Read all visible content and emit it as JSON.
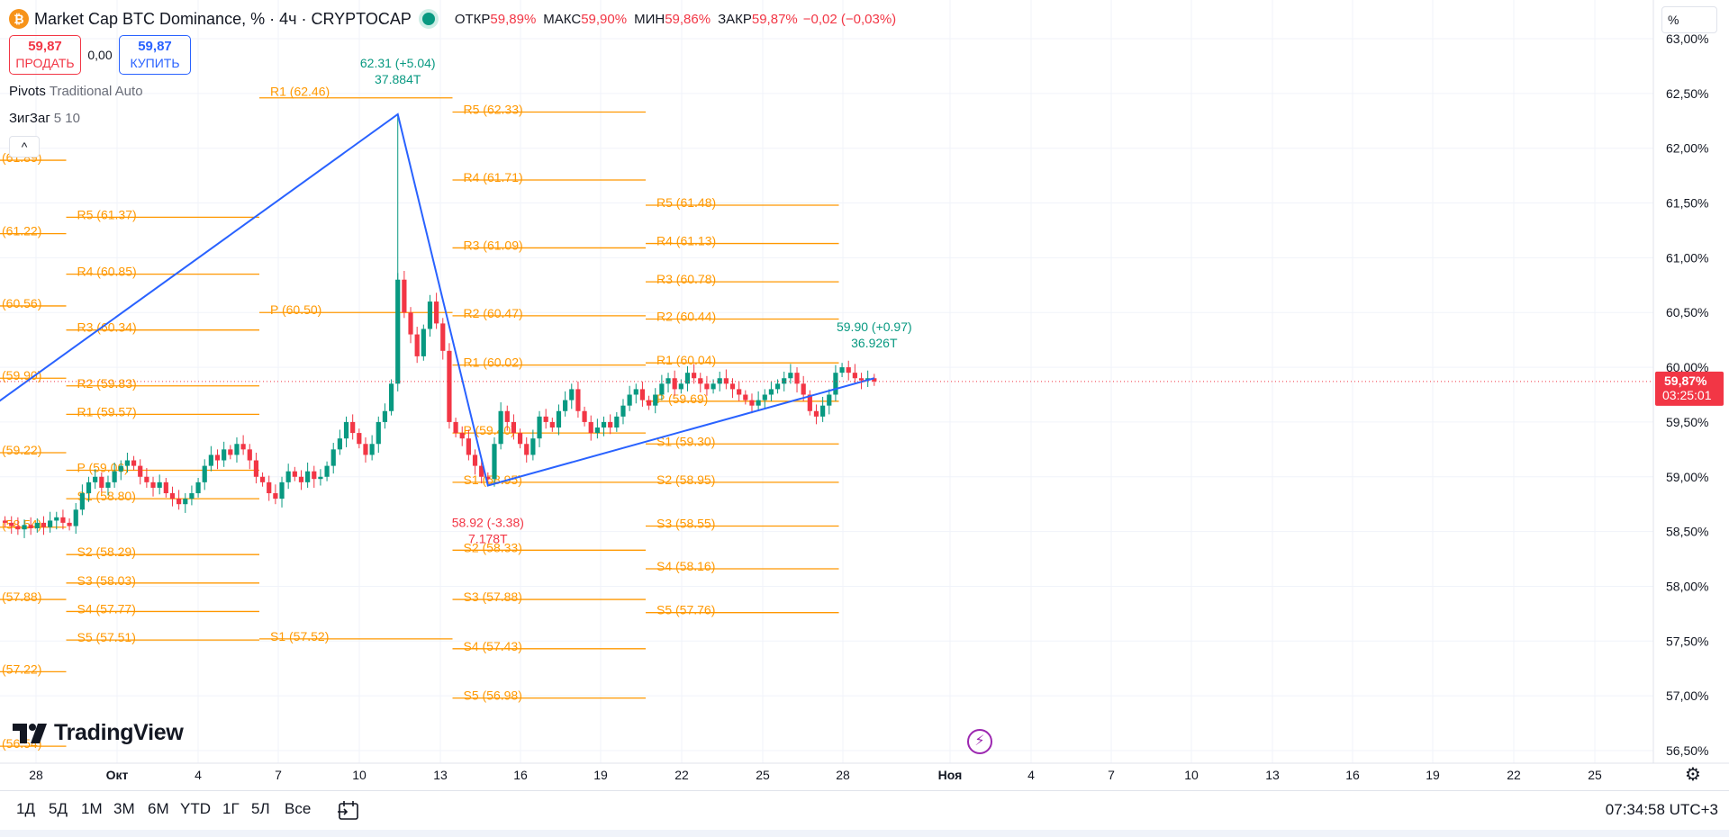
{
  "header": {
    "symbol": "Market Cap BTC Dominance, % · 4ч · CRYPTOCAP",
    "ohlc": [
      {
        "label": "ОТКР",
        "value": "59,89%"
      },
      {
        "label": "МАКС",
        "value": "59,90%"
      },
      {
        "label": "МИН",
        "value": "59,86%"
      },
      {
        "label": "ЗАКР",
        "value": "59,87%"
      }
    ],
    "change": "−0,02 (−0,03%)",
    "coin_symbol": "₿"
  },
  "trade": {
    "sell_price": "59,87",
    "sell_label": "ПРОДАТЬ",
    "spread": "0,00",
    "buy_price": "59,87",
    "buy_label": "КУПИТЬ"
  },
  "indicators": [
    {
      "name": "Pivots",
      "args": "Traditional Auto"
    },
    {
      "name": "ЗигЗаг",
      "args": "5 10"
    }
  ],
  "collapse_glyph": "^",
  "unit_selector": "%",
  "colors": {
    "up": "#089981",
    "down": "#f23645",
    "pivot": "#ff9800",
    "zigzag": "#2962ff",
    "accent": "#2962ff"
  },
  "chart_data": {
    "type": "candlestick",
    "timeframe": "4ч",
    "ylim": [
      56.5,
      63.0
    ],
    "y_ticks": [
      "56,50%",
      "57,00%",
      "57,50%",
      "58,00%",
      "58,50%",
      "59,00%",
      "59,50%",
      "60,00%",
      "60,50%",
      "61,00%",
      "61,50%",
      "62,00%",
      "62,50%",
      "63,00%"
    ],
    "x_ticks": [
      "28",
      "Окт",
      "4",
      "7",
      "10",
      "13",
      "16",
      "19",
      "22",
      "25",
      "28",
      "Ноя",
      "4",
      "7",
      "10",
      "13",
      "16",
      "19",
      "22",
      "25"
    ],
    "last_price": {
      "value": 59.87,
      "label": "59,87%",
      "countdown": "03:25:01"
    },
    "candles": [
      [
        58.6,
        58.58
      ],
      [
        58.58,
        58.55
      ],
      [
        58.55,
        58.52
      ],
      [
        58.52,
        58.56
      ],
      [
        58.56,
        58.53
      ],
      [
        58.53,
        58.58
      ],
      [
        58.58,
        58.54
      ],
      [
        58.54,
        58.6
      ],
      [
        58.6,
        58.63
      ],
      [
        58.63,
        58.58
      ],
      [
        58.58,
        58.55
      ],
      [
        58.55,
        58.7
      ],
      [
        58.7,
        58.85
      ],
      [
        58.85,
        58.95
      ],
      [
        58.95,
        59.0
      ],
      [
        59.0,
        58.9
      ],
      [
        58.9,
        58.95
      ],
      [
        58.95,
        59.05
      ],
      [
        59.05,
        59.1
      ],
      [
        59.1,
        59.15
      ],
      [
        59.15,
        59.1
      ],
      [
        59.1,
        59.0
      ],
      [
        59.0,
        58.95
      ],
      [
        58.95,
        58.9
      ],
      [
        58.9,
        58.95
      ],
      [
        58.95,
        58.85
      ],
      [
        58.85,
        58.8
      ],
      [
        58.8,
        58.75
      ],
      [
        58.75,
        58.8
      ],
      [
        58.8,
        58.85
      ],
      [
        58.85,
        58.95
      ],
      [
        58.95,
        59.1
      ],
      [
        59.1,
        59.2
      ],
      [
        59.2,
        59.15
      ],
      [
        59.15,
        59.25
      ],
      [
        59.25,
        59.2
      ],
      [
        59.2,
        59.3
      ],
      [
        59.3,
        59.25
      ],
      [
        59.25,
        59.15
      ],
      [
        59.15,
        59.0
      ],
      [
        59.0,
        58.95
      ],
      [
        58.95,
        58.85
      ],
      [
        58.85,
        58.8
      ],
      [
        58.8,
        58.95
      ],
      [
        58.95,
        59.05
      ],
      [
        59.05,
        59.0
      ],
      [
        59.0,
        58.95
      ],
      [
        58.95,
        59.05
      ],
      [
        59.05,
        58.98
      ],
      [
        58.98,
        59.0
      ],
      [
        59.0,
        59.1
      ],
      [
        59.1,
        59.25
      ],
      [
        59.25,
        59.35
      ],
      [
        59.35,
        59.5
      ],
      [
        59.5,
        59.4
      ],
      [
        59.4,
        59.3
      ],
      [
        59.3,
        59.2
      ],
      [
        59.2,
        59.3
      ],
      [
        59.3,
        59.5
      ],
      [
        59.5,
        59.6
      ],
      [
        59.6,
        59.85
      ],
      [
        59.85,
        60.8
      ],
      [
        60.8,
        60.5
      ],
      [
        60.5,
        60.3
      ],
      [
        60.3,
        60.1
      ],
      [
        60.1,
        60.35
      ],
      [
        60.35,
        60.6
      ],
      [
        60.6,
        60.4
      ],
      [
        60.4,
        60.15
      ],
      [
        60.15,
        59.5
      ],
      [
        59.5,
        59.4
      ],
      [
        59.4,
        59.35
      ],
      [
        59.35,
        59.2
      ],
      [
        59.2,
        59.1
      ],
      [
        59.1,
        59.0
      ],
      [
        59.0,
        58.98
      ],
      [
        58.98,
        59.3
      ],
      [
        59.3,
        59.6
      ],
      [
        59.6,
        59.5
      ],
      [
        59.5,
        59.4
      ],
      [
        59.4,
        59.3
      ],
      [
        59.3,
        59.2
      ],
      [
        59.2,
        59.35
      ],
      [
        59.35,
        59.55
      ],
      [
        59.55,
        59.5
      ],
      [
        59.5,
        59.45
      ],
      [
        59.45,
        59.6
      ],
      [
        59.6,
        59.7
      ],
      [
        59.7,
        59.8
      ],
      [
        59.8,
        59.6
      ],
      [
        59.6,
        59.5
      ],
      [
        59.5,
        59.4
      ],
      [
        59.4,
        59.45
      ],
      [
        59.45,
        59.5
      ],
      [
        59.5,
        59.45
      ],
      [
        59.45,
        59.55
      ],
      [
        59.55,
        59.65
      ],
      [
        59.65,
        59.75
      ],
      [
        59.75,
        59.8
      ],
      [
        59.8,
        59.7
      ],
      [
        59.7,
        59.65
      ],
      [
        59.65,
        59.75
      ],
      [
        59.75,
        59.85
      ],
      [
        59.85,
        59.9
      ],
      [
        59.9,
        59.8
      ],
      [
        59.8,
        59.85
      ],
      [
        59.85,
        59.95
      ],
      [
        59.95,
        59.9
      ],
      [
        59.9,
        59.85
      ],
      [
        59.85,
        59.8
      ],
      [
        59.8,
        59.85
      ],
      [
        59.85,
        59.9
      ],
      [
        59.9,
        59.85
      ],
      [
        59.85,
        59.8
      ],
      [
        59.8,
        59.75
      ],
      [
        59.75,
        59.7
      ],
      [
        59.7,
        59.65
      ],
      [
        59.65,
        59.7
      ],
      [
        59.7,
        59.75
      ],
      [
        59.75,
        59.8
      ],
      [
        59.8,
        59.85
      ],
      [
        59.85,
        59.9
      ],
      [
        59.9,
        59.95
      ],
      [
        59.95,
        59.85
      ],
      [
        59.85,
        59.75
      ],
      [
        59.75,
        59.6
      ],
      [
        59.6,
        59.55
      ],
      [
        59.55,
        59.65
      ],
      [
        59.65,
        59.75
      ],
      [
        59.75,
        59.95
      ],
      [
        59.95,
        60.0
      ],
      [
        60.0,
        59.95
      ],
      [
        59.95,
        59.9
      ],
      [
        59.9,
        59.88
      ],
      [
        59.88,
        59.9
      ],
      [
        59.9,
        59.87
      ]
    ],
    "zigzag": {
      "points": [
        [
          0,
          59.55
        ],
        [
          61,
          62.31
        ],
        [
          75,
          58.92
        ],
        [
          135,
          59.9
        ]
      ],
      "labels": [
        {
          "idx": 61,
          "price": 62.31,
          "text": "62.31 (+5.04)",
          "volume": "37.884T",
          "pos": "above",
          "color": "up"
        },
        {
          "idx": 75,
          "price": 58.92,
          "text": "58.92 (-3.38)",
          "volume": "7.178T",
          "pos": "below",
          "color": "down"
        },
        {
          "idx": 135,
          "price": 59.9,
          "text": "59.90 (+0.97)",
          "volume": "36.926T",
          "pos": "above",
          "color": "up"
        }
      ]
    },
    "pivot_periods": [
      {
        "start": -30,
        "end": 10,
        "levels": [
          {
            "label": "(61.89)",
            "value": 61.89
          },
          {
            "label": "(61.22)",
            "value": 61.22
          },
          {
            "label": "(60.56)",
            "value": 60.56
          },
          {
            "label": "(59.90)",
            "value": 59.9
          },
          {
            "label": "(59.22)",
            "value": 59.22
          },
          {
            "label": "(58.54)",
            "value": 58.54
          },
          {
            "label": "(57.88)",
            "value": 57.88
          },
          {
            "label": "(57.22)",
            "value": 57.22
          },
          {
            "label": "(56.54)",
            "value": 56.54
          }
        ]
      },
      {
        "start": 10,
        "end": 40,
        "levels": [
          {
            "label": "R5 (61.37)",
            "value": 61.37
          },
          {
            "label": "R4 (60.85)",
            "value": 60.85
          },
          {
            "label": "R3 (60.34)",
            "value": 60.34
          },
          {
            "label": "R2 (59.83)",
            "value": 59.83
          },
          {
            "label": "R1 (59.57)",
            "value": 59.57
          },
          {
            "label": "P (59.06)",
            "value": 59.06
          },
          {
            "label": "S1 (58.80)",
            "value": 58.8
          },
          {
            "label": "S2 (58.29)",
            "value": 58.29
          },
          {
            "label": "S3 (58.03)",
            "value": 58.03
          },
          {
            "label": "S4 (57.77)",
            "value": 57.77
          },
          {
            "label": "S5 (57.51)",
            "value": 57.51
          }
        ]
      },
      {
        "start": 40,
        "end": 70,
        "levels": [
          {
            "label": "R1 (62.46)",
            "value": 62.46
          },
          {
            "label": "P (60.50)",
            "value": 60.5
          },
          {
            "label": "S1 (57.52)",
            "value": 57.52
          }
        ]
      },
      {
        "start": 70,
        "end": 100,
        "levels": [
          {
            "label": "R5 (62.33)",
            "value": 62.33
          },
          {
            "label": "R4 (61.71)",
            "value": 61.71
          },
          {
            "label": "R3 (61.09)",
            "value": 61.09
          },
          {
            "label": "R2 (60.47)",
            "value": 60.47
          },
          {
            "label": "R1 (60.02)",
            "value": 60.02
          },
          {
            "label": "P (59.40)",
            "value": 59.4
          },
          {
            "label": "S1 (58.95)",
            "value": 58.95
          },
          {
            "label": "S2 (58.33)",
            "value": 58.33
          },
          {
            "label": "S3 (57.88)",
            "value": 57.88
          },
          {
            "label": "S4 (57.43)",
            "value": 57.43
          },
          {
            "label": "S5 (56.98)",
            "value": 56.98
          }
        ]
      },
      {
        "start": 100,
        "end": 130,
        "levels": [
          {
            "label": "R5 (61.48)",
            "value": 61.48
          },
          {
            "label": "R4 (61.13)",
            "value": 61.13
          },
          {
            "label": "R3 (60.78)",
            "value": 60.78
          },
          {
            "label": "R2 (60.44)",
            "value": 60.44
          },
          {
            "label": "R1 (60.04)",
            "value": 60.04
          },
          {
            "label": "P (59.69)",
            "value": 59.69
          },
          {
            "label": "S1 (59.30)",
            "value": 59.3
          },
          {
            "label": "S2 (58.95)",
            "value": 58.95
          },
          {
            "label": "S3 (58.55)",
            "value": 58.55
          },
          {
            "label": "S4 (58.16)",
            "value": 58.16
          },
          {
            "label": "S5 (57.76)",
            "value": 57.76
          }
        ]
      }
    ]
  },
  "bottom": {
    "ranges": [
      "1Д",
      "5Д",
      "1М",
      "3М",
      "6М",
      "YTD",
      "1Г",
      "5Л",
      "Все"
    ],
    "clock": "07:34:58 UTC+3"
  },
  "branding": {
    "logo_text": "TradingView"
  },
  "icons": {
    "bolt": "⚡",
    "settings": "⚙"
  }
}
